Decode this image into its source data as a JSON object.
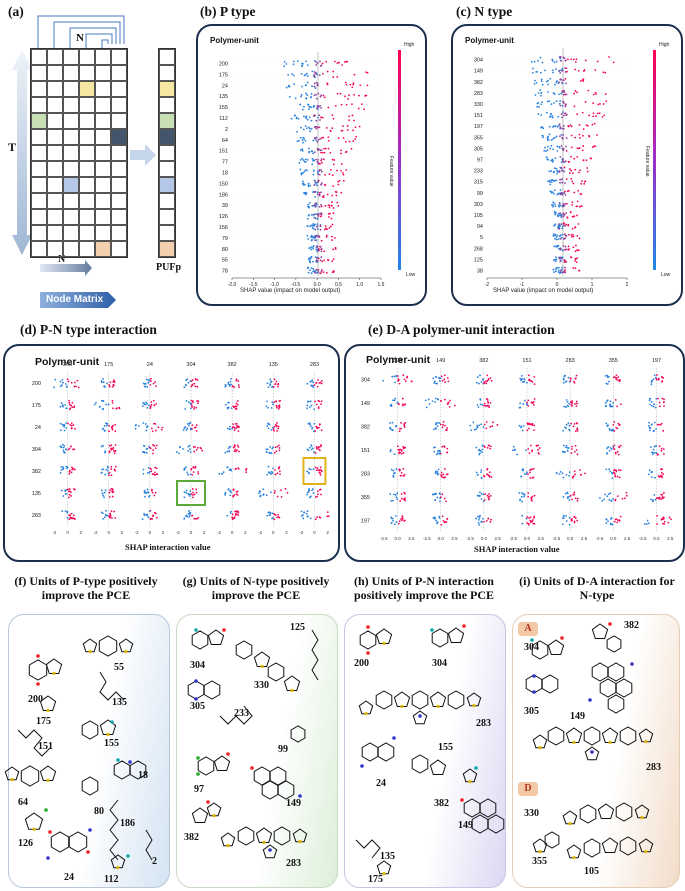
{
  "panel_a": {
    "label": "(a)",
    "t_label": "T",
    "n_label": "N",
    "n_bottom": "N",
    "pufp": "PUFp",
    "node_matrix": "Node Matrix",
    "colors": {
      "yellow": "#f5e7a0",
      "green": "#c6e0b4",
      "navy": "#44546a",
      "blue": "#b4c7e7",
      "peach": "#f4cfae"
    }
  },
  "panel_b": {
    "label": "(b) P type",
    "title": "Polymer-unit",
    "rows": [
      "200",
      "175",
      "24",
      "135",
      "155",
      "112",
      "2",
      "64",
      "151",
      "77",
      "18",
      "150",
      "186",
      "39",
      "126",
      "156",
      "79",
      "80",
      "55",
      "78"
    ],
    "xticks": [
      "-2.0",
      "-1.5",
      "-1.0",
      "-0.5",
      "0.0",
      "0.5",
      "1.0",
      "1.5"
    ],
    "xlabel": "SHAP value (impact on model output)",
    "cbar_high": "High",
    "cbar_low": "Low",
    "cbar_label": "Feature value"
  },
  "panel_c": {
    "label": "(c) N type",
    "title": "Polymer-unit",
    "rows": [
      "304",
      "149",
      "382",
      "283",
      "330",
      "151",
      "197",
      "355",
      "305",
      "97",
      "233",
      "315",
      "99",
      "303",
      "105",
      "94",
      "5",
      "268",
      "125",
      "38"
    ],
    "xticks": [
      "-2",
      "-1",
      "0",
      "1",
      "2"
    ],
    "xlabel": "SHAP value (impact on model output)",
    "cbar_high": "High",
    "cbar_low": "Low",
    "cbar_label": "Feature value"
  },
  "panel_d": {
    "label": "(d) P-N type interaction",
    "title": "Polymer-unit",
    "cols": [
      "200",
      "175",
      "24",
      "304",
      "382",
      "135",
      "283"
    ],
    "rows": [
      "200",
      "175",
      "24",
      "304",
      "382",
      "135",
      "283"
    ],
    "xlabel": "SHAP interaction value",
    "ticks": [
      "-2",
      "0",
      "2"
    ]
  },
  "panel_e": {
    "label": "(e) D-A polymer-unit interaction",
    "title": "Polymer-unit",
    "cols": [
      "304",
      "149",
      "382",
      "151",
      "283",
      "355",
      "197"
    ],
    "rows": [
      "304",
      "149",
      "382",
      "151",
      "283",
      "355",
      "197"
    ],
    "xlabel": "SHAP interaction value",
    "ticks": [
      "-2.5",
      "0.0",
      "2.5"
    ]
  },
  "panel_f": {
    "label": "(f) Units of P-type positively improve the PCE",
    "units": [
      "200",
      "55",
      "175",
      "135",
      "151",
      "155",
      "18",
      "64",
      "80",
      "126",
      "186",
      "24",
      "112",
      "2"
    ]
  },
  "panel_g": {
    "label": "(g) Units of N-type positively improve the PCE",
    "units": [
      "304",
      "125",
      "330",
      "305",
      "233",
      "99",
      "97",
      "149",
      "382",
      "283"
    ]
  },
  "panel_h": {
    "label": "(h) Units of P-N interaction positively improve the PCE",
    "units": [
      "200",
      "304",
      "283",
      "155",
      "24",
      "382",
      "149",
      "135",
      "175"
    ]
  },
  "panel_i": {
    "label": "(i) Units of D-A interaction for N-type",
    "tag_a": "A",
    "tag_d": "D",
    "units": [
      "382",
      "304",
      "149",
      "305",
      "283",
      "330",
      "355",
      "105"
    ]
  }
}
